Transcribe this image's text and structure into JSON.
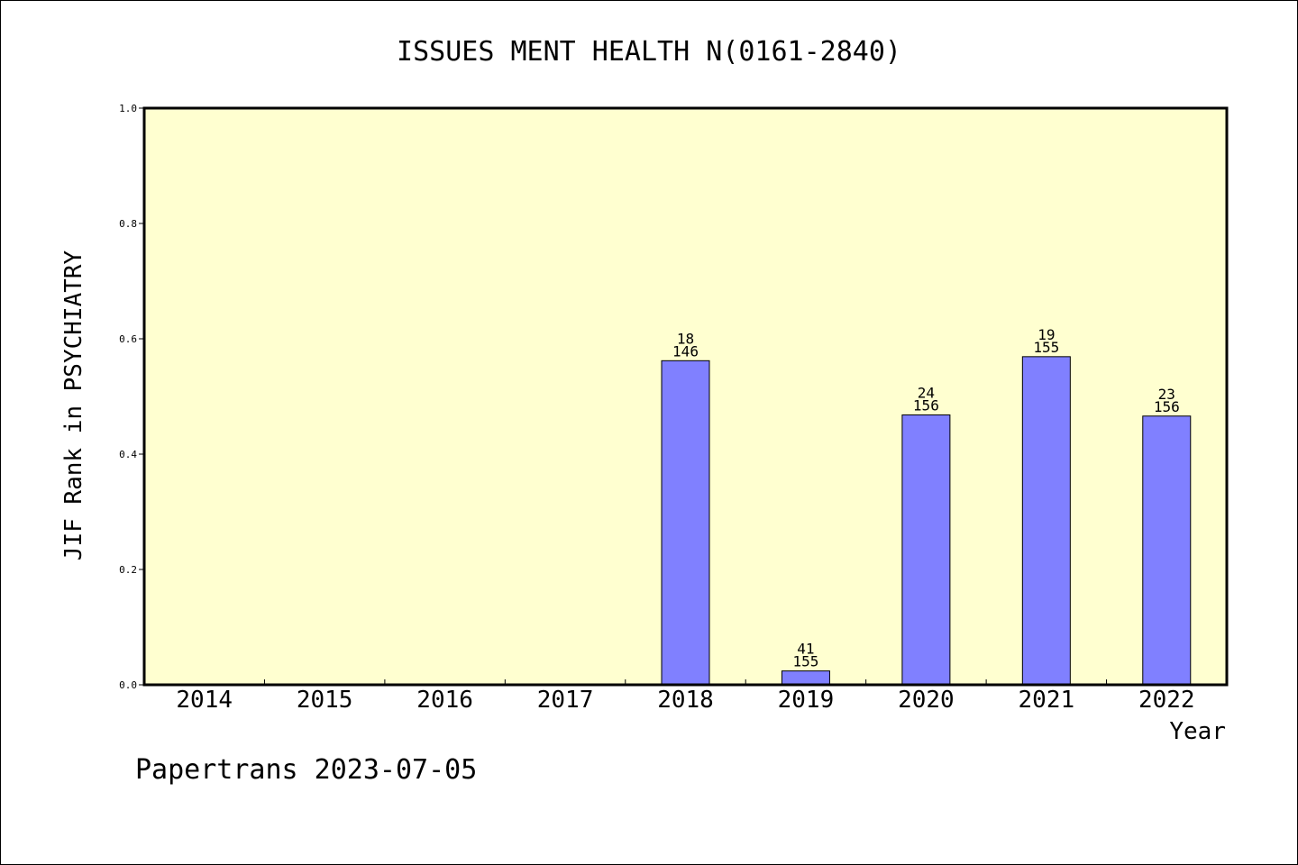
{
  "title": "ISSUES MENT HEALTH N(0161-2840)",
  "footer": "Papertrans 2023-07-05",
  "colors": {
    "plot_bg": "#ffffd0",
    "bar_fill": "#8080ff",
    "bar_stroke": "#000000"
  },
  "chart_data": {
    "type": "bar",
    "title": "ISSUES MENT HEALTH N(0161-2840)",
    "xlabel": "Year",
    "ylabel": "JIF Rank in PSYCHIATRY",
    "ylim": [
      0,
      1.0
    ],
    "yticks": [
      "0.0",
      "0.2",
      "0.4",
      "0.6",
      "0.8",
      "1.0"
    ],
    "categories": [
      "2014",
      "2015",
      "2016",
      "2017",
      "2018",
      "2019",
      "2020",
      "2021",
      "2022"
    ],
    "values": [
      null,
      null,
      null,
      null,
      0.562,
      0.024,
      0.468,
      0.569,
      0.466
    ],
    "bar_labels": [
      null,
      null,
      null,
      null,
      {
        "rank": "18",
        "total": "146"
      },
      {
        "rank": "41",
        "total": "155"
      },
      {
        "rank": "24",
        "total": "156"
      },
      {
        "rank": "19",
        "total": "155"
      },
      {
        "rank": "23",
        "total": "156"
      }
    ],
    "grid": false,
    "legend": "none"
  }
}
